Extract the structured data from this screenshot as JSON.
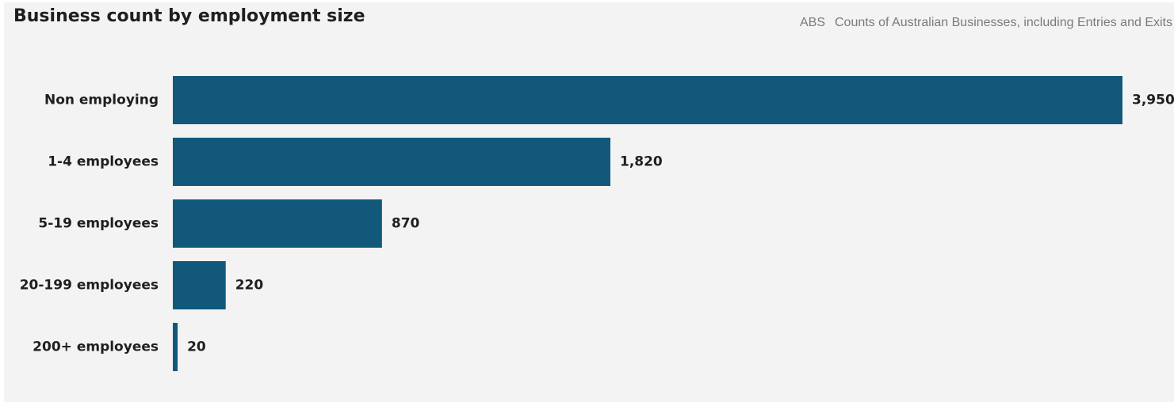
{
  "header": {
    "title": "Business count by employment size",
    "source_name": "ABS",
    "source_detail": "Counts of Australian Businesses, including Entries and Exits"
  },
  "chart_data": {
    "type": "bar",
    "orientation": "horizontal",
    "title": "Business count by employment size",
    "categories": [
      "Non employing",
      "1-4 employees",
      "5-19 employees",
      "20-199 employees",
      "200+ employees"
    ],
    "values": [
      3950,
      1820,
      870,
      220,
      20
    ],
    "value_labels": [
      "3,950",
      "1,820",
      "870",
      "220",
      "20"
    ],
    "xlim": [
      0,
      3950
    ],
    "bar_color": "#12587a",
    "grid": false,
    "legend": "none"
  }
}
